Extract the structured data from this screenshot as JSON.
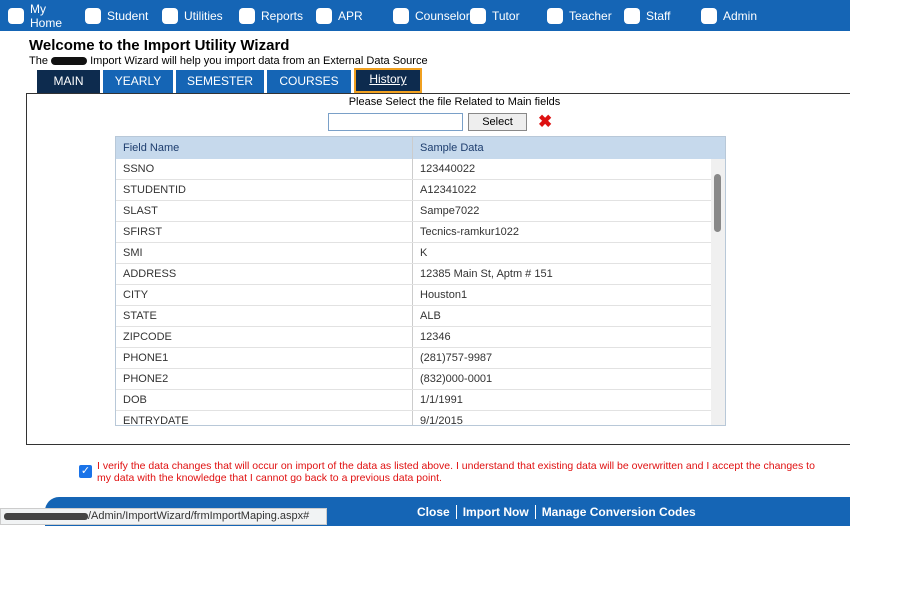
{
  "nav": {
    "items": [
      "My Home",
      "Student",
      "Utilities",
      "Reports",
      "APR",
      "Counselor",
      "Tutor",
      "Teacher",
      "Staff",
      "Admin"
    ]
  },
  "header": {
    "title": "Welcome to the Import Utility Wizard",
    "subtitle_prefix": "The",
    "subtitle": "Import Wizard will help you import data from an External Data Source"
  },
  "tabs": [
    "MAIN",
    "YEARLY",
    "SEMESTER",
    "COURSES",
    "History"
  ],
  "file_prompt": "Please Select the file Related to Main fields",
  "select_button": "Select",
  "table": {
    "columns": [
      "Field Name",
      "Sample Data"
    ],
    "rows": [
      [
        "SSNO",
        "123440022"
      ],
      [
        "STUDENTID",
        "A12341022"
      ],
      [
        "SLAST",
        "Sampe7022"
      ],
      [
        "SFIRST",
        "Tecnics-ramkur1022"
      ],
      [
        "SMI",
        "K"
      ],
      [
        "ADDRESS",
        "12385 Main St, Aptm # 151"
      ],
      [
        "CITY",
        "Houston1"
      ],
      [
        "STATE",
        "ALB"
      ],
      [
        "ZIPCODE",
        "12346"
      ],
      [
        "PHONE1",
        "(281)757-9987"
      ],
      [
        "PHONE2",
        "(832)000-0001"
      ],
      [
        "DOB",
        "1/1/1991"
      ],
      [
        "ENTRYDATE",
        "9/1/2015"
      ]
    ]
  },
  "verify_text": "I verify the data changes that will occur on import of the data as listed above. I understand that existing data will be overwritten and I accept the changes to my data with the knowledge that I cannot go back to a previous data point.",
  "footer": {
    "links": [
      "Close",
      "Import Now",
      "Manage Conversion Codes"
    ]
  },
  "status_url": "/Admin/ImportWizard/frmImportMaping.aspx#"
}
